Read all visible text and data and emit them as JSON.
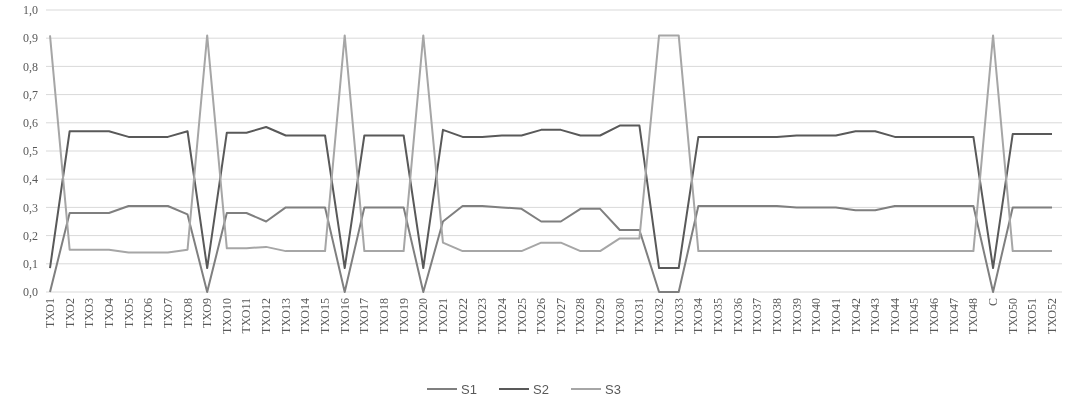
{
  "chart_data": {
    "type": "line",
    "categories": [
      "ТХО1",
      "ТХО2",
      "ТХО3",
      "ТХО4",
      "ТХО5",
      "ТХО6",
      "ТХО7",
      "ТХО8",
      "ТХО9",
      "ТХО10",
      "ТХО11",
      "ТХО12",
      "ТХО13",
      "ТХО14",
      "ТХО15",
      "ТХО16",
      "ТХО17",
      "ТХО18",
      "ТХО19",
      "ТХО20",
      "ТХО21",
      "ТХО22",
      "ТХО23",
      "ТХО24",
      "ТХО25",
      "ТХО26",
      "ТХО27",
      "ТХО28",
      "ТХО29",
      "ТХО30",
      "ТХО31",
      "ТХО32",
      "ТХО33",
      "ТХО34",
      "ТХО35",
      "ТХО36",
      "ТХО37",
      "ТХО38",
      "ТХО39",
      "ТХО40",
      "ТХО41",
      "ТХО42",
      "ТХО43",
      "ТХО44",
      "ТХО45",
      "ТХО46",
      "ТХО47",
      "ТХО48",
      "С",
      "ТХО50",
      "ТХО51",
      "ТХО52"
    ],
    "series": [
      {
        "name": "S1",
        "color": "#7f7f7f",
        "values": [
          0,
          0.28,
          0.28,
          0.28,
          0.305,
          0.305,
          0.305,
          0.275,
          0,
          0.28,
          0.28,
          0.25,
          0.3,
          0.3,
          0.3,
          0,
          0.3,
          0.3,
          0.3,
          0,
          0.25,
          0.305,
          0.305,
          0.3,
          0.295,
          0.25,
          0.25,
          0.295,
          0.295,
          0.22,
          0.22,
          0,
          0,
          0.305,
          0.305,
          0.305,
          0.305,
          0.305,
          0.3,
          0.3,
          0.3,
          0.29,
          0.29,
          0.305,
          0.305,
          0.305,
          0.305,
          0.305,
          0,
          0.3,
          0.3,
          0.3
        ]
      },
      {
        "name": "S2",
        "color": "#595959",
        "values": [
          0.085,
          0.57,
          0.57,
          0.57,
          0.55,
          0.55,
          0.55,
          0.57,
          0.085,
          0.565,
          0.565,
          0.585,
          0.555,
          0.555,
          0.555,
          0.085,
          0.555,
          0.555,
          0.555,
          0.085,
          0.575,
          0.55,
          0.55,
          0.555,
          0.555,
          0.575,
          0.575,
          0.555,
          0.555,
          0.59,
          0.59,
          0.085,
          0.085,
          0.55,
          0.55,
          0.55,
          0.55,
          0.55,
          0.555,
          0.555,
          0.555,
          0.57,
          0.57,
          0.55,
          0.55,
          0.55,
          0.55,
          0.55,
          0.085,
          0.56,
          0.56,
          0.56
        ]
      },
      {
        "name": "S3",
        "color": "#a6a6a6",
        "values": [
          0.91,
          0.15,
          0.15,
          0.15,
          0.14,
          0.14,
          0.14,
          0.15,
          0.91,
          0.155,
          0.155,
          0.16,
          0.145,
          0.145,
          0.145,
          0.91,
          0.145,
          0.145,
          0.145,
          0.91,
          0.175,
          0.145,
          0.145,
          0.145,
          0.145,
          0.175,
          0.175,
          0.145,
          0.145,
          0.19,
          0.19,
          0.91,
          0.91,
          0.145,
          0.145,
          0.145,
          0.145,
          0.145,
          0.145,
          0.145,
          0.145,
          0.145,
          0.145,
          0.145,
          0.145,
          0.145,
          0.145,
          0.145,
          0.91,
          0.145,
          0.145,
          0.145
        ]
      }
    ],
    "ylim": [
      0,
      1
    ],
    "yticks": [
      {
        "value": 0,
        "label": "0,0"
      },
      {
        "value": 0.1,
        "label": "0,1"
      },
      {
        "value": 0.2,
        "label": "0,2"
      },
      {
        "value": 0.3,
        "label": "0,3"
      },
      {
        "value": 0.4,
        "label": "0,4"
      },
      {
        "value": 0.5,
        "label": "0,5"
      },
      {
        "value": 0.6,
        "label": "0,6"
      },
      {
        "value": 0.7,
        "label": "0,7"
      },
      {
        "value": 0.8,
        "label": "0,8"
      },
      {
        "value": 0.9,
        "label": "0,9"
      },
      {
        "value": 1,
        "label": "1,0"
      }
    ],
    "grid": "y",
    "legend": "bottom",
    "marker": "none",
    "line_style": "solid"
  }
}
